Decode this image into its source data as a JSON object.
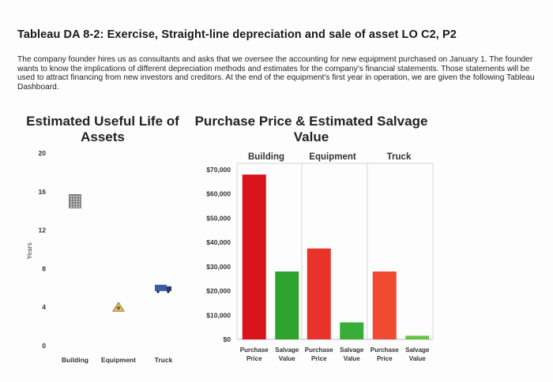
{
  "header": {
    "title": "Tableau DA 8-2: Exercise, Straight-line depreciation and sale of asset LO C2, P2",
    "paragraph": "The company founder hires us as consultants and asks that we oversee the accounting for new equipment purchased on January 1. The founder wants to know the implications of different depreciation methods and estimates for the company's financial statements. Those statements will be used to attract financing from new investors and creditors. At the end of the equipment's first year in operation, we are given the following Tableau Dashboard."
  },
  "useful_life_chart": {
    "title": "Estimated Useful Life of Assets",
    "ylabel": "Years"
  },
  "purchase_chart": {
    "title": "Purchase Price & Estimated Salvage Value"
  },
  "chart_data": [
    {
      "type": "scatter",
      "title": "Estimated Useful Life of Assets",
      "ylabel": "Years",
      "ylim": [
        0,
        20
      ],
      "yticks": [
        0,
        4,
        8,
        12,
        16,
        20
      ],
      "categories": [
        "Building",
        "Equipment",
        "Truck"
      ],
      "values": [
        15,
        4,
        6
      ],
      "icons": [
        "building-icon",
        "equipment-icon",
        "truck-icon"
      ],
      "colors": {
        "building": "#808080",
        "equipment": "#e6c85a",
        "truck": "#3a5ca8"
      }
    },
    {
      "type": "bar",
      "title": "Purchase Price & Estimated Salvage Value",
      "ylim": [
        0,
        70000
      ],
      "yticks": [
        0,
        10000,
        20000,
        30000,
        40000,
        50000,
        60000,
        70000
      ],
      "ytick_labels": [
        "$0",
        "$10,000",
        "$20,000",
        "$30,000",
        "$40,000",
        "$50,000",
        "$60,000",
        "$70,000"
      ],
      "groups": [
        "Building",
        "Equipment",
        "Truck"
      ],
      "group_order": [
        "Purchase Price",
        "Salvage Value"
      ],
      "bars": [
        {
          "group": "Building",
          "label": "Purchase Price",
          "value": 68000,
          "color": "#d9141a"
        },
        {
          "group": "Building",
          "label": "Salvage Value",
          "value": 28000,
          "color": "#2ea32e"
        },
        {
          "group": "Equipment",
          "label": "Purchase Price",
          "value": 37500,
          "color": "#e8332a"
        },
        {
          "group": "Equipment",
          "label": "Salvage Value",
          "value": 7000,
          "color": "#38ad38"
        },
        {
          "group": "Truck",
          "label": "Purchase Price",
          "value": 28000,
          "color": "#f04a33"
        },
        {
          "group": "Truck",
          "label": "Salvage Value",
          "value": 1500,
          "color": "#67c442"
        }
      ]
    }
  ]
}
